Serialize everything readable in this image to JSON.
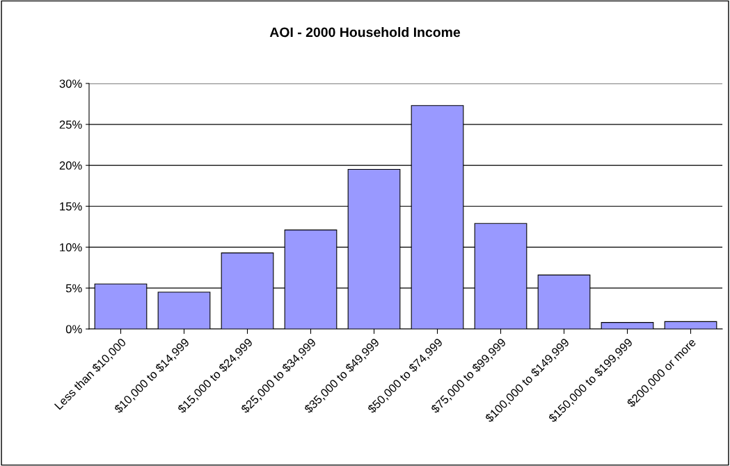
{
  "chart_data": {
    "type": "bar",
    "title": "AOI - 2000 Household Income",
    "categories": [
      "Less than $10,000",
      "$10,000 to $14,999",
      "$15,000 to $24,999",
      "$25,000 to $34,999",
      "$35,000 to $49,999",
      "$50,000 to $74,999",
      "$75,000 to $99,999",
      "$100,000 to $149,999",
      "$150,000 to $199,999",
      "$200,000 or more"
    ],
    "values": [
      5.5,
      4.5,
      9.3,
      12.1,
      19.5,
      27.3,
      12.9,
      6.6,
      0.8,
      0.9
    ],
    "color": "#9999ff",
    "ylim": [
      0,
      30
    ],
    "yticks": [
      {
        "value": 0,
        "label": "0%"
      },
      {
        "value": 5,
        "label": "5%"
      },
      {
        "value": 10,
        "label": "10%"
      },
      {
        "value": 15,
        "label": "15%"
      },
      {
        "value": 20,
        "label": "20%"
      },
      {
        "value": 25,
        "label": "25%"
      },
      {
        "value": 30,
        "label": "30%"
      }
    ],
    "grid": "y",
    "legend": false
  }
}
